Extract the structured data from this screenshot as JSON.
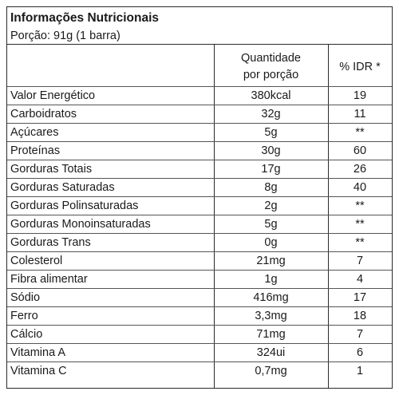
{
  "title": "Informações Nutricionais",
  "portion": "Porção: 91g (1 barra)",
  "headers": {
    "quantity_line1": "Quantidade",
    "quantity_line2": "por porção",
    "idr": "% IDR *"
  },
  "rows": [
    {
      "name": "Valor Energético",
      "qty": "380kcal",
      "idr": "19"
    },
    {
      "name": "Carboidratos",
      "qty": "32g",
      "idr": "11"
    },
    {
      "name": "Açúcares",
      "qty": "5g",
      "idr": "**"
    },
    {
      "name": "Proteínas",
      "qty": "30g",
      "idr": "60"
    },
    {
      "name": "Gorduras Totais",
      "qty": "17g",
      "idr": "26"
    },
    {
      "name": "Gorduras Saturadas",
      "qty": "8g",
      "idr": "40"
    },
    {
      "name": "Gorduras Polinsaturadas",
      "qty": "2g",
      "idr": "**"
    },
    {
      "name": "Gorduras Monoinsaturadas",
      "qty": "5g",
      "idr": "**"
    },
    {
      "name": "Gorduras Trans",
      "qty": "0g",
      "idr": "**"
    },
    {
      "name": "Colesterol",
      "qty": "21mg",
      "idr": "7"
    },
    {
      "name": "Fibra alimentar",
      "qty": "1g",
      "idr": "4"
    },
    {
      "name": "Sódio",
      "qty": "416mg",
      "idr": "17"
    },
    {
      "name": "Ferro",
      "qty": "3,3mg",
      "idr": "18"
    },
    {
      "name": "Cálcio",
      "qty": "71mg",
      "idr": "7"
    },
    {
      "name": "Vitamina A",
      "qty": "324ui",
      "idr": "6"
    },
    {
      "name": "Vitamina C",
      "qty": "0,7mg",
      "idr": "1"
    }
  ]
}
